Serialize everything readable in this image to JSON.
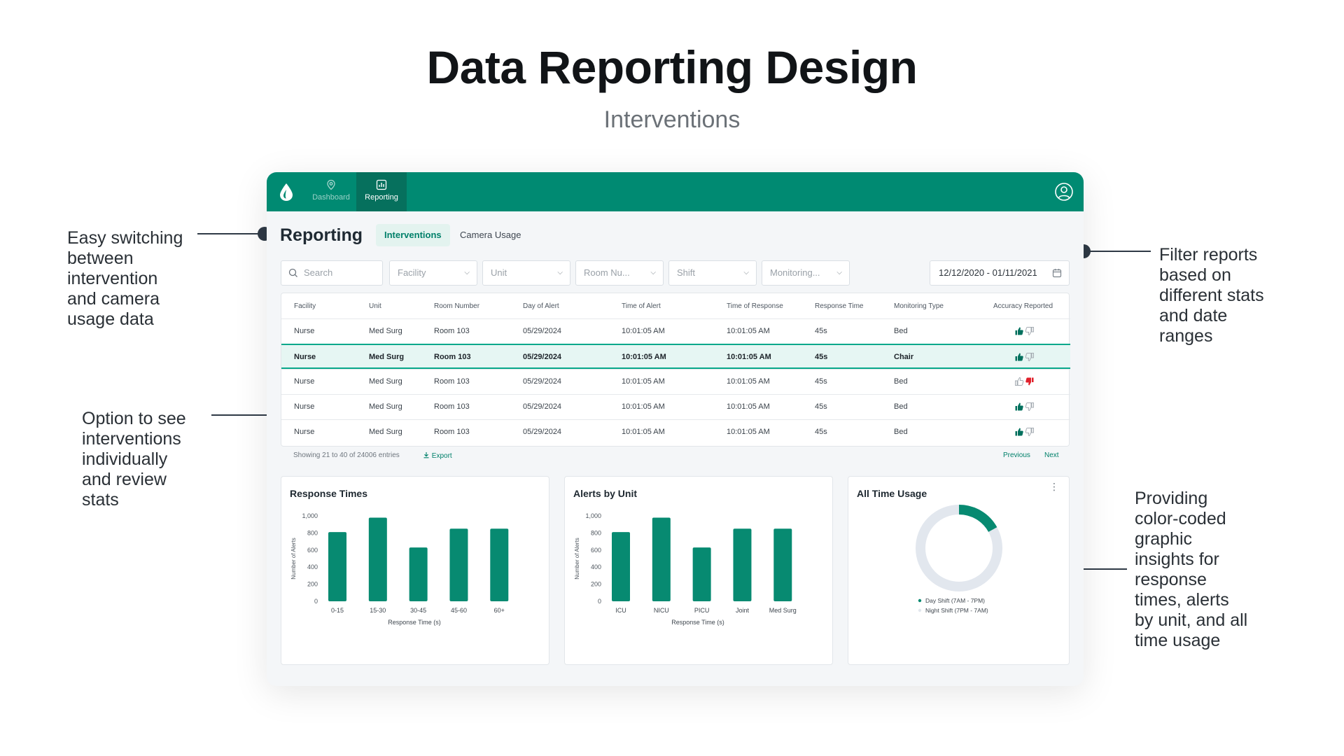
{
  "page": {
    "title": "Data Reporting Design",
    "subtitle": "Interventions"
  },
  "annotations": {
    "switching": "Easy switching\nbetween\nintervention\nand camera\nusage data",
    "individual": "Option to see\ninterventions\nindividually\nand review\nstats",
    "filter": "Filter reports\nbased on\ndifferent stats\nand date\nranges",
    "insights": "Providing\ncolor-coded\ngraphic\ninsights for\nresponse\ntimes, alerts\nby unit, and all\ntime usage"
  },
  "nav": {
    "items": [
      {
        "label": "Dashboard",
        "icon": "location-pin-icon"
      },
      {
        "label": "Reporting",
        "icon": "bar-chart-icon"
      }
    ],
    "active": "Reporting",
    "user_icon": "user-circle-icon",
    "logo_icon": "drop-logo-icon"
  },
  "header": {
    "title": "Reporting",
    "tabs": [
      {
        "label": "Interventions",
        "active": true
      },
      {
        "label": "Camera Usage",
        "active": false
      }
    ]
  },
  "filters": {
    "search_placeholder": "Search",
    "dropdowns": [
      "Facility",
      "Unit",
      "Room Nu...",
      "Shift",
      "Monitoring..."
    ],
    "date_range": "12/12/2020 - 01/11/2021"
  },
  "table": {
    "columns": [
      "Facility",
      "Unit",
      "Room Number",
      "Day of Alert",
      "Time of Alert",
      "Time of Response",
      "Response Time",
      "Monitoring Type",
      "Accuracy Reported"
    ],
    "rows": [
      {
        "facility": "Nurse",
        "unit": "Med Surg",
        "room": "Room 103",
        "day": "05/29/2024",
        "time_alert": "10:01:05 AM",
        "time_response": "10:01:05 AM",
        "response_time": "45s",
        "type": "Bed",
        "accuracy": "up"
      },
      {
        "facility": "Nurse",
        "unit": "Med Surg",
        "room": "Room 103",
        "day": "05/29/2024",
        "time_alert": "10:01:05 AM",
        "time_response": "10:01:05 AM",
        "response_time": "45s",
        "type": "Chair",
        "accuracy": "up"
      },
      {
        "facility": "Nurse",
        "unit": "Med Surg",
        "room": "Room 103",
        "day": "05/29/2024",
        "time_alert": "10:01:05 AM",
        "time_response": "10:01:05 AM",
        "response_time": "45s",
        "type": "Bed",
        "accuracy": "down"
      },
      {
        "facility": "Nurse",
        "unit": "Med Surg",
        "room": "Room 103",
        "day": "05/29/2024",
        "time_alert": "10:01:05 AM",
        "time_response": "10:01:05 AM",
        "response_time": "45s",
        "type": "Bed",
        "accuracy": "up"
      },
      {
        "facility": "Nurse",
        "unit": "Med Surg",
        "room": "Room 103",
        "day": "05/29/2024",
        "time_alert": "10:01:05 AM",
        "time_response": "10:01:05 AM",
        "response_time": "45s",
        "type": "Bed",
        "accuracy": "up"
      }
    ],
    "selected_row": 1,
    "footer_text": "Showing 21 to 40 of 24006 entries",
    "export_label": "Export",
    "previous_label": "Previous",
    "next_label": "Next"
  },
  "colors": {
    "brand": "#008a72",
    "bar": "#078a71",
    "thumb_up": "#00705d",
    "thumb_down": "#e0202b",
    "donut_track": "#e2e7ee"
  },
  "chart_data": [
    {
      "type": "bar",
      "title": "Response Times",
      "categories": [
        "0-15",
        "15-30",
        "30-45",
        "45-60",
        "60+"
      ],
      "values": [
        810,
        980,
        630,
        850,
        850
      ],
      "xlabel": "Response Time (s)",
      "ylabel": "Number of Alerts",
      "ylim": [
        0,
        1000
      ],
      "yticks": [
        0,
        200,
        400,
        600,
        800,
        1000
      ],
      "ytick_labels": [
        "0",
        "200",
        "400",
        "600",
        "800",
        "1,000"
      ],
      "grid": false
    },
    {
      "type": "bar",
      "title": "Alerts by Unit",
      "categories": [
        "ICU",
        "NICU",
        "PICU",
        "Joint",
        "Med Surg"
      ],
      "values": [
        810,
        980,
        630,
        850,
        850
      ],
      "xlabel": "Response Time (s)",
      "ylabel": "Number of Alerts",
      "ylim": [
        0,
        1000
      ],
      "yticks": [
        0,
        200,
        400,
        600,
        800,
        1000
      ],
      "ytick_labels": [
        "0",
        "200",
        "400",
        "600",
        "800",
        "1,000"
      ],
      "grid": false
    },
    {
      "type": "pie",
      "title": "All Time Usage",
      "labels": [
        "Day Shift (7AM - 7PM)",
        "Night Shift (7PM - 7AM)"
      ],
      "values": [
        17,
        83
      ],
      "colors": [
        "#078a71",
        "#e2e7ee"
      ],
      "legend": "bottom"
    }
  ]
}
